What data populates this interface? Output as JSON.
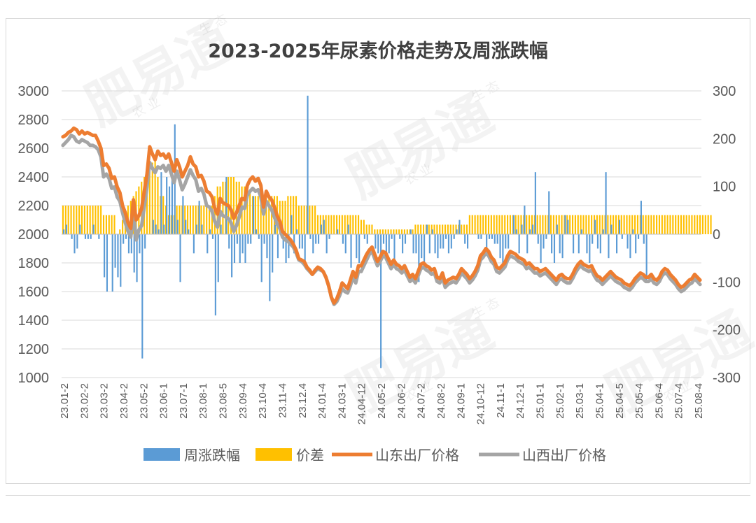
{
  "watermark": {
    "brand": "肥易通",
    "sub1": "农 业",
    "sub2": "生 态"
  },
  "chart_data": {
    "type": "bar",
    "title": "2023-2025年尿素价格走势及周涨跌幅",
    "legend_position": "bottom",
    "grid": true,
    "y_left": {
      "ticks": [
        1000,
        1200,
        1400,
        1600,
        1800,
        2000,
        2200,
        2400,
        2600,
        2800,
        3000
      ],
      "range": [
        1000,
        3000
      ]
    },
    "y_right": {
      "ticks": [
        -300,
        -200,
        -100,
        0,
        100,
        200,
        300
      ],
      "range": [
        -300,
        300
      ]
    },
    "x_tick_labels": [
      "23.01-2",
      "23.02-2",
      "23.03-2",
      "23.04-2",
      "23.05-2",
      "23.06-1",
      "23.07-1",
      "23.08-1",
      "23.08-5",
      "23.09-4",
      "23.10-4",
      "23.11-4",
      "23.12.4",
      "24.01-4",
      "24.03-1",
      "24.04-12",
      "24.05-2",
      "24.06-2",
      "24.07-2",
      "24.08-2",
      "24.09-1",
      "24.10-12",
      "24.11-1",
      "24.12-1",
      "25.01-1",
      "25.02-1",
      "25.03-1",
      "25.04-1",
      "25.04-5",
      "25.05-4",
      "25.06-4",
      "25.07-4",
      "25.08-4"
    ],
    "series": [
      {
        "name": "周涨跌幅",
        "type": "bar",
        "axis": "right",
        "color": "#5b9bd5",
        "values": [
          10,
          20,
          0,
          -10,
          -40,
          -30,
          20,
          0,
          -10,
          -10,
          -10,
          20,
          0,
          -10,
          0,
          -90,
          -120,
          0,
          -120,
          -70,
          -90,
          -110,
          -20,
          -10,
          -40,
          -40,
          -80,
          -100,
          -40,
          -260,
          -30,
          0,
          0,
          30,
          20,
          10,
          130,
          20,
          120,
          100,
          140,
          230,
          30,
          -100,
          80,
          30,
          10,
          0,
          -40,
          20,
          70,
          20,
          0,
          -40,
          10,
          -10,
          -170,
          -100,
          20,
          0,
          120,
          -30,
          -90,
          -60,
          -20,
          -60,
          -40,
          -60,
          -20,
          -20,
          80,
          10,
          -10,
          -100,
          -20,
          -50,
          -140,
          -80,
          20,
          -50,
          10,
          -30,
          -60,
          -50,
          40,
          -40,
          10,
          -30,
          -30,
          -70,
          290,
          -10,
          -40,
          -20,
          -20,
          20,
          30,
          -40,
          -10,
          0,
          0,
          10,
          0,
          -20,
          -40,
          20,
          -70,
          0,
          -50,
          -60,
          0,
          -10,
          -20,
          0,
          0,
          -30,
          -40,
          -280,
          -20,
          -40,
          -40,
          -10,
          -70,
          0,
          -10,
          -40,
          -20,
          0,
          10,
          -40,
          -40,
          -100,
          -50,
          -70,
          20,
          -40,
          10,
          -40,
          -50,
          -30,
          -30,
          -10,
          -40,
          -30,
          -10,
          10,
          30,
          0,
          -20,
          -30,
          0,
          0,
          0,
          -10,
          -10,
          0,
          -30,
          -10,
          -10,
          -20,
          -20,
          -50,
          -70,
          -30,
          -30,
          0,
          40,
          10,
          -40,
          20,
          60,
          -40,
          10,
          20,
          130,
          -20,
          -60,
          -30,
          -10,
          90,
          -40,
          -60,
          20,
          -40,
          -50,
          40,
          30,
          0,
          -40,
          0,
          -40,
          10,
          0,
          -40,
          -60,
          -20,
          30,
          -30,
          -40,
          10,
          130,
          -50,
          20,
          0,
          -40,
          30,
          -10,
          0,
          -30,
          -50,
          10,
          -40,
          -10,
          70,
          -20,
          -100
        ]
      },
      {
        "name": "价差",
        "type": "bar",
        "axis": "right",
        "color": "#ffc000",
        "values": [
          60,
          60,
          60,
          60,
          60,
          60,
          60,
          60,
          60,
          60,
          60,
          60,
          60,
          60,
          60,
          40,
          40,
          40,
          40,
          40,
          0,
          10,
          30,
          30,
          60,
          70,
          80,
          90,
          100,
          110,
          120,
          130,
          140,
          150,
          160,
          120,
          80,
          80,
          60,
          40,
          40,
          40,
          60,
          60,
          60,
          60,
          60,
          60,
          60,
          60,
          60,
          60,
          60,
          60,
          60,
          60,
          80,
          100,
          100,
          110,
          110,
          120,
          120,
          120,
          110,
          110,
          100,
          100,
          90,
          90,
          80,
          80,
          80,
          80,
          80,
          80,
          80,
          80,
          80,
          80,
          70,
          70,
          70,
          80,
          80,
          80,
          80,
          60,
          60,
          60,
          60,
          60,
          60,
          60,
          40,
          40,
          40,
          40,
          40,
          40,
          40,
          40,
          40,
          40,
          40,
          40,
          40,
          40,
          40,
          40,
          30,
          30,
          20,
          20,
          20,
          10,
          10,
          10,
          10,
          10,
          10,
          10,
          10,
          10,
          10,
          10,
          10,
          10,
          10,
          10,
          20,
          20,
          20,
          20,
          20,
          20,
          20,
          20,
          20,
          20,
          20,
          20,
          20,
          20,
          20,
          20,
          20,
          20,
          20,
          20,
          40,
          40,
          40,
          40,
          40,
          40,
          40,
          40,
          40,
          40,
          40,
          40,
          40,
          40,
          40,
          40,
          40,
          40,
          40,
          40,
          40,
          40,
          40,
          40,
          40,
          40,
          40,
          40,
          40,
          40,
          40,
          40,
          40,
          40,
          40,
          40,
          40,
          40,
          40,
          40,
          40,
          40,
          40,
          40,
          40,
          40,
          40,
          40,
          40,
          40,
          40,
          40,
          40,
          40,
          40,
          40,
          40,
          40,
          40,
          40,
          40,
          40,
          40,
          40,
          40,
          40,
          40,
          40,
          40,
          40,
          40,
          40,
          40,
          40,
          40,
          40,
          40,
          40,
          40,
          40,
          40,
          40,
          40,
          40,
          40,
          40,
          40,
          40,
          40,
          40
        ]
      },
      {
        "name": "山东出厂价格",
        "type": "line",
        "axis": "left",
        "color": "#ed7d31",
        "values": [
          2680,
          2690,
          2710,
          2720,
          2740,
          2730,
          2700,
          2720,
          2700,
          2710,
          2700,
          2690,
          2690,
          2650,
          2600,
          2480,
          2490,
          2460,
          2390,
          2400,
          2330,
          2290,
          2200,
          2150,
          2080,
          2040,
          2240,
          2100,
          2130,
          2180,
          2300,
          2420,
          2610,
          2560,
          2520,
          2580,
          2550,
          2560,
          2530,
          2560,
          2500,
          2440,
          2520,
          2470,
          2400,
          2440,
          2480,
          2540,
          2490,
          2470,
          2400,
          2410,
          2370,
          2300,
          2290,
          2260,
          2180,
          2140,
          2250,
          2220,
          2210,
          2200,
          2170,
          2110,
          2150,
          2200,
          2250,
          2240,
          2340,
          2380,
          2400,
          2370,
          2390,
          2340,
          2190,
          2300,
          2260,
          2240,
          2190,
          2130,
          2090,
          2020,
          2000,
          1980,
          1960,
          1930,
          1890,
          1830,
          1820,
          1810,
          1770,
          1750,
          1720,
          1750,
          1770,
          1760,
          1740,
          1700,
          1640,
          1560,
          1520,
          1550,
          1600,
          1660,
          1640,
          1620,
          1680,
          1740,
          1700,
          1780,
          1780,
          1820,
          1860,
          1890,
          1910,
          1860,
          1810,
          1840,
          1880,
          1870,
          1830,
          1790,
          1820,
          1790,
          1780,
          1760,
          1780,
          1740,
          1700,
          1720,
          1690,
          1740,
          1790,
          1800,
          1780,
          1770,
          1750,
          1760,
          1700,
          1690,
          1730,
          1660,
          1680,
          1690,
          1700,
          1690,
          1720,
          1760,
          1740,
          1720,
          1690,
          1710,
          1740,
          1780,
          1850,
          1870,
          1900,
          1880,
          1840,
          1820,
          1770,
          1760,
          1780,
          1800,
          1850,
          1880,
          1870,
          1860,
          1840,
          1830,
          1820,
          1790,
          1800,
          1780,
          1760,
          1760,
          1740,
          1750,
          1760,
          1740,
          1720,
          1700,
          1680,
          1710,
          1720,
          1700,
          1690,
          1690,
          1720,
          1760,
          1790,
          1810,
          1790,
          1780,
          1770,
          1780,
          1740,
          1710,
          1700,
          1680,
          1700,
          1720,
          1740,
          1720,
          1700,
          1690,
          1680,
          1660,
          1650,
          1640,
          1660,
          1690,
          1710,
          1730,
          1720,
          1700,
          1700,
          1720,
          1690,
          1680,
          1700,
          1740,
          1760,
          1750,
          1720,
          1700,
          1680,
          1650,
          1630,
          1640,
          1660,
          1680,
          1690,
          1720,
          1700,
          1680
        ]
      },
      {
        "name": "山西出厂价格",
        "type": "line",
        "axis": "left",
        "color": "#a5a5a5",
        "values": [
          2620,
          2640,
          2660,
          2690,
          2680,
          2650,
          2640,
          2660,
          2650,
          2640,
          2620,
          2620,
          2610,
          2590,
          2540,
          2400,
          2420,
          2390,
          2320,
          2330,
          2260,
          2230,
          2150,
          2080,
          2020,
          1980,
          2160,
          1960,
          2030,
          2060,
          2190,
          2330,
          2500,
          2460,
          2430,
          2470,
          2460,
          2480,
          2440,
          2480,
          2420,
          2360,
          2440,
          2380,
          2310,
          2350,
          2400,
          2450,
          2410,
          2380,
          2300,
          2320,
          2280,
          2200,
          2190,
          2160,
          2090,
          2050,
          2160,
          2130,
          2120,
          2110,
          2080,
          2020,
          2060,
          2120,
          2190,
          2180,
          2270,
          2300,
          2320,
          2300,
          2310,
          2260,
          2140,
          2230,
          2200,
          2170,
          2120,
          2070,
          2040,
          1980,
          1960,
          1950,
          1930,
          1910,
          1870,
          1820,
          1810,
          1790,
          1760,
          1740,
          1720,
          1740,
          1760,
          1750,
          1740,
          1700,
          1640,
          1560,
          1510,
          1530,
          1570,
          1620,
          1600,
          1590,
          1640,
          1700,
          1660,
          1740,
          1740,
          1780,
          1820,
          1860,
          1880,
          1830,
          1780,
          1810,
          1850,
          1840,
          1800,
          1760,
          1790,
          1760,
          1750,
          1730,
          1750,
          1710,
          1670,
          1690,
          1660,
          1710,
          1760,
          1770,
          1750,
          1740,
          1720,
          1730,
          1670,
          1660,
          1700,
          1630,
          1650,
          1660,
          1670,
          1660,
          1690,
          1730,
          1710,
          1690,
          1660,
          1680,
          1710,
          1750,
          1820,
          1840,
          1870,
          1850,
          1810,
          1790,
          1740,
          1730,
          1750,
          1770,
          1820,
          1850,
          1840,
          1830,
          1810,
          1800,
          1790,
          1760,
          1770,
          1750,
          1730,
          1730,
          1710,
          1720,
          1730,
          1710,
          1690,
          1670,
          1650,
          1680,
          1690,
          1670,
          1660,
          1660,
          1690,
          1730,
          1760,
          1780,
          1760,
          1750,
          1740,
          1750,
          1710,
          1680,
          1670,
          1650,
          1670,
          1690,
          1710,
          1690,
          1670,
          1660,
          1650,
          1630,
          1620,
          1610,
          1630,
          1660,
          1680,
          1700,
          1690,
          1670,
          1670,
          1690,
          1660,
          1650,
          1670,
          1710,
          1730,
          1720,
          1690,
          1670,
          1650,
          1620,
          1600,
          1610,
          1630,
          1650,
          1660,
          1690,
          1670,
          1650
        ]
      }
    ]
  }
}
